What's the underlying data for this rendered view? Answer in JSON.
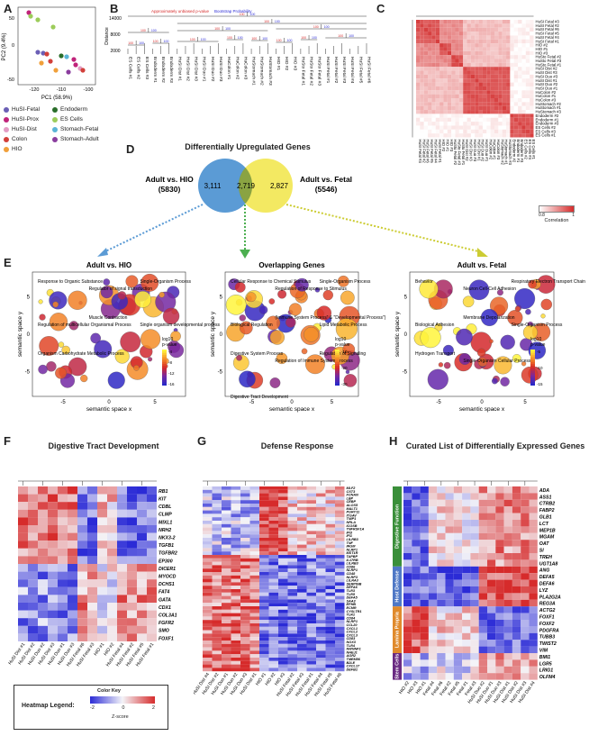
{
  "panels": {
    "a": {
      "label": "A",
      "xlabel": "PC1 (58.9%)",
      "ylabel": "PC2 (9.4%)",
      "xticks": [
        "-120",
        "-110",
        "-100"
      ],
      "yticks": [
        "50",
        "0",
        "-50"
      ]
    },
    "b": {
      "label": "B",
      "ylabel": "Distance",
      "yticks": [
        "14000",
        "8000",
        "2000"
      ],
      "legend_au": "Approximately unbiased p-value",
      "legend_bp": "Bootstrap Probability",
      "leaves": [
        "ES Cells #1",
        "ES Cells #2",
        "ES Cells #3",
        "Endoderm #1",
        "Endoderm #2",
        "Endoderm #3",
        "HuSI Dist #1",
        "HuSI Dist #2",
        "HuSI Dist #3",
        "HuSI Duo #1",
        "HuSI Duo #2",
        "HuSI Duo #3",
        "HuColon #1",
        "HuColon #2",
        "HuColon #3",
        "HuStomach #1",
        "HuStomach #2",
        "HuStomach #3",
        "HIO #1",
        "HIO #2",
        "HIO #3",
        "HuSto Fetal #1",
        "HuSto Fetal #2",
        "HuSto Fetal #3",
        "HuSI Fetal #1",
        "HuSI Fetal #2",
        "HuSI Fetal #3",
        "HuSI Fetal #4",
        "HuSI Fetal #5",
        "HuSI Fetal #6"
      ]
    },
    "c": {
      "label": "C",
      "legend_title": "Correlation",
      "legend_ticks": [
        "0.8",
        "1"
      ],
      "rows": [
        "HuSI Fetal #3",
        "HuSI Fetal #2",
        "HuSI Fetal #6",
        "HuSI Fetal #5",
        "HuSI Fetal #4",
        "HuSI Fetal #1",
        "HIO #2",
        "HIO #1",
        "HIO #3",
        "HuSto Fetal #2",
        "HuSto Fetal #3",
        "HuSto Fetal #1",
        "HuSI Dist #2",
        "HuSI Dist #3",
        "HuSI Duo #3",
        "HuSI Dist #1",
        "HuSI Duo #2",
        "HuSI Duo #1",
        "HuColon #2",
        "HuColon #1",
        "HuColon #3",
        "HuStomach #2",
        "HuStomach #1",
        "HuStomach #3",
        "Endoderm #2",
        "Endoderm #1",
        "Endoderm #3",
        "ES Cells #2",
        "ES Cells #3",
        "ES Cells #1"
      ]
    },
    "d": {
      "label": "D",
      "title": "Differentially Upregulated Genes",
      "left_title": "Adult vs. HIO",
      "left_count": "(5830)",
      "right_title": "Adult vs. Fetal",
      "right_count": "(5546)",
      "n_left": "3,111",
      "n_mid": "2,719",
      "n_right": "2,827"
    },
    "e": {
      "label": "E",
      "xlabel": "semantic space x",
      "ylabel": "semantic space y",
      "left": {
        "title": "Adult vs. HIO",
        "legend_title": "log10\np-value",
        "legend_ticks": [
          "-4",
          "-8",
          "-12",
          "-16"
        ],
        "xticks": [
          "-5",
          "0",
          "5"
        ],
        "yticks": [
          "5",
          "0",
          "-5"
        ],
        "annotations": [
          "Response to Organic Substance",
          "Regulator of signal transduction",
          "Single-Organism Process",
          "Regulation of multicellular Organismal Process",
          "Muscle Contraction",
          "Single organism developmental process",
          "Organism Carbohydrate Metabolic Process"
        ]
      },
      "mid": {
        "title": "Overlapping Genes",
        "legend_title": "log10\np-value",
        "legend_ticks": [
          "-10",
          "-20",
          "-30"
        ],
        "xticks": [
          "-5",
          "0",
          "5"
        ],
        "yticks": [
          "5",
          "0",
          "-5"
        ],
        "annotations": [
          "Cellular Response to Chemical Stimulus",
          "Regulation of Response to Stimulus",
          "Single-Organism Process",
          "Biological Regulation",
          "(Immune System Process\" & \"Developmental Process\")",
          "Lipid Metabolic Process",
          "Digestive System Process",
          "Regulation of Immune System Process",
          "Regulation of Signaling",
          "Digestive Tract Development"
        ]
      },
      "right": {
        "title": "Adult vs. Fetal",
        "legend_title": "log10\np-value",
        "legend_ticks": [
          "-5",
          "-10",
          "-15"
        ],
        "xticks": [
          "-5",
          "0",
          "5"
        ],
        "yticks": [
          "5",
          "0",
          "-5"
        ],
        "annotations": [
          "Behavior",
          "Neuron Cell-Cell Adhesion",
          "Respiratory Electron Transport Chain",
          "Biological Adhesion",
          "Membrane Depolarization",
          "Single-Organism Process",
          "Hydrogen Transport",
          "Single-Organism Cellular Process"
        ]
      }
    },
    "f": {
      "label": "F",
      "title": "Digestive Tract Development",
      "genes": [
        "RB1",
        "KIT",
        "CDBL",
        "CLMP",
        "MIXL1",
        "NRH2",
        "NKX3-2",
        "TGFB1",
        "TGFBR2",
        "EP300",
        "DICER1",
        "MYOCD",
        "DCHS1",
        "FAT4",
        "GATA",
        "CDX1",
        "COL3A1",
        "FGFR2",
        "SMO",
        "FOXF1"
      ],
      "cols": [
        "HuSI Dist #1",
        "HuSI Dist #2",
        "HuSI Duo #2",
        "HuSI Dist #3",
        "HuSI Duo #1",
        "HuSI Duo #3",
        "HuSI Fetal #6",
        "HuSI Fetal #3",
        "HIO #1",
        "HIO #2",
        "HuSI Fetal #4",
        "HuSI Fetal #2",
        "HuSI Fetal #5",
        "HuSI Fetal #1"
      ],
      "legend_title": "Heatmap Legend:",
      "color_key": "Color Key",
      "key_ticks": [
        "-2",
        "0",
        "2"
      ],
      "key_label": "Z-score"
    },
    "g": {
      "label": "G",
      "title": "Defense Response",
      "genes": [
        "MLF2",
        "CST3",
        "FCNAN",
        "LBP",
        "CEBP",
        "ALOX5",
        "MALT1",
        "PGRY11",
        "ITGAV",
        "TNIP1",
        "NRLA",
        "ICOSB",
        "TNFRSF1A",
        "IFI3",
        "IFI1",
        "LILRB3",
        "TNF",
        "IRGM",
        "NLRP1",
        "MST1R",
        "TAPBP",
        "IL17RB",
        "LILRB3",
        "CD86",
        "NLRP1",
        "CD48",
        "NLRP3",
        "LILRA3",
        "SERPINB",
        "DEFA6",
        "TLR3",
        "TLR5",
        "DEFA5",
        "SAA3",
        "EPHB",
        "ECMR",
        "CYSLTR1",
        "TLR1",
        "CD84",
        "NLRP1",
        "CCL20",
        "CXCL1",
        "CXCL2",
        "CXCL3",
        "CD83",
        "NOX3",
        "TLR4",
        "NWNNF1",
        "NHEJ1",
        "AGR2",
        "TMEM86",
        "B2LE",
        "CXCL17",
        "DEFB1"
      ],
      "cols": [
        "HuSI Dist #4",
        "HuSI Dist #2",
        "HuSI Duo #1",
        "HuSI Duo #2",
        "HuSI Duo #3",
        "HuSI Dist #1",
        "HIO #1",
        "HIO #2",
        "HIO #3",
        "HuSI Fetal #2",
        "HuSI Fetal #3",
        "HuSI Fetal #1",
        "HuSI Fetal #4",
        "HuSI Fetal #5",
        "HuSI Fetal #6"
      ]
    },
    "h": {
      "label": "H",
      "title": "Curated List of Differentially Expressed Genes",
      "groups": [
        {
          "name": "Digestive Function",
          "color": "#3a8f3a",
          "genes": [
            "ADA",
            "ASS1",
            "CTRB2",
            "FABP2",
            "GLB1",
            "LCT",
            "MEP1B",
            "MGAM",
            "OAT",
            "SI",
            "TREH",
            "UGT1A8"
          ]
        },
        {
          "name": "Host Defense",
          "color": "#4f78c6",
          "genes": [
            "ANG",
            "DEFA5",
            "DEFA6",
            "LYZ",
            "PLA2G2A",
            "REG3A"
          ]
        },
        {
          "name": "Lamina Propria",
          "color": "#e08a2c",
          "genes": [
            "ACTG2",
            "FOXF1",
            "FOXF2",
            "PDGFRA",
            "TUBB3",
            "TWIST2",
            "VIM"
          ]
        },
        {
          "name": "Stem Cells",
          "color": "#6a2a82",
          "genes": [
            "BMI1",
            "LGR5",
            "LRIG1",
            "OLFM4"
          ]
        }
      ],
      "cols": [
        "HIO #2",
        "HIO #3",
        "HIO #1",
        "Fetal #4",
        "Fetal #6",
        "Fetal #2",
        "Fetal #5",
        "Fetal #1",
        "Fetal #3",
        "HuSI Duo #2",
        "HuSI Duo #1",
        "HuSI Duo #3",
        "HuSI Dist #1",
        "HuSI Dist #2",
        "HuSI Dist #3",
        "HuSI Dist #4"
      ]
    }
  },
  "legend_a": [
    {
      "label": "HuSI-Fetal",
      "color": "#6b5fb5"
    },
    {
      "label": "Endoderm",
      "color": "#2a6e2a"
    },
    {
      "label": "HuSI-Prox",
      "color": "#c0237a"
    },
    {
      "label": "ES Cells",
      "color": "#9ccc5a"
    },
    {
      "label": "HuSI-Dist",
      "color": "#e39cc4"
    },
    {
      "label": "Stomach-Fetal",
      "color": "#5ab4d6"
    },
    {
      "label": "Colon",
      "color": "#d2403a"
    },
    {
      "label": "Stomach-Adult",
      "color": "#8a3d9e"
    },
    {
      "label": "HIO",
      "color": "#f0a03a"
    }
  ],
  "colors": {
    "venn_left": "#5b9bd5",
    "venn_right": "#f2e85a",
    "venn_mid": "#3a6e2a",
    "heat_low": "#2b2bd6",
    "heat_mid": "#f4f4f8",
    "heat_high": "#d62b2b",
    "arrow_left": "#5b9bd5",
    "arrow_mid": "#4caf50",
    "arrow_right": "#cccc33"
  }
}
